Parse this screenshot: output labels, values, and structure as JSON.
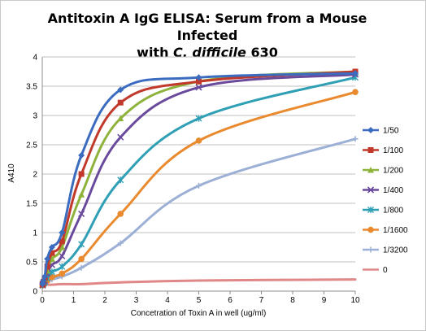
{
  "chart_data": {
    "type": "line",
    "title_line1": "Antitoxin A IgG ELISA: Serum from a Mouse Infected",
    "title_line2_prefix": "with ",
    "title_line2_italic": "C. difficile",
    "title_line2_suffix": " 630",
    "xlabel": "Concetration of Toxin A in well (ug/ml)",
    "ylabel": "A410",
    "xlim": [
      0,
      10
    ],
    "ylim": [
      0,
      4
    ],
    "x_ticks": [
      "0",
      "1",
      "2",
      "3",
      "4",
      "5",
      "6",
      "7",
      "8",
      "9",
      "10"
    ],
    "y_ticks": [
      "0",
      "0.5",
      "1",
      "1.5",
      "2",
      "2.5",
      "3",
      "3.5",
      "4"
    ],
    "grid": "horizontal",
    "legend_position": "right",
    "x": [
      0.01,
      0.02,
      0.04,
      0.08,
      0.16,
      0.31,
      0.63,
      1.25,
      2.5,
      5,
      10
    ],
    "series": [
      {
        "name": "1/50",
        "color": "#3b6cc0",
        "marker": "diamond",
        "values": [
          0.12,
          0.14,
          0.18,
          0.25,
          0.55,
          0.75,
          1.0,
          2.32,
          3.44,
          3.65,
          3.72
        ]
      },
      {
        "name": "1/100",
        "color": "#c0392b",
        "marker": "square",
        "values": [
          0.11,
          0.13,
          0.16,
          0.22,
          0.42,
          0.65,
          0.85,
          2.0,
          3.22,
          3.58,
          3.75
        ]
      },
      {
        "name": "1/200",
        "color": "#8eb33b",
        "marker": "triangle",
        "values": [
          0.11,
          0.12,
          0.15,
          0.2,
          0.35,
          0.55,
          0.75,
          1.65,
          2.95,
          3.58,
          3.75
        ]
      },
      {
        "name": "1/400",
        "color": "#6a4a9c",
        "marker": "x",
        "values": [
          0.1,
          0.12,
          0.14,
          0.18,
          0.3,
          0.45,
          0.6,
          1.32,
          2.63,
          3.48,
          3.7
        ]
      },
      {
        "name": "1/800",
        "color": "#2e9fb4",
        "marker": "star",
        "values": [
          0.1,
          0.11,
          0.13,
          0.16,
          0.22,
          0.33,
          0.42,
          0.8,
          1.9,
          2.95,
          3.65
        ]
      },
      {
        "name": "1/1600",
        "color": "#e98a2f",
        "marker": "circle",
        "values": [
          0.1,
          0.11,
          0.12,
          0.14,
          0.18,
          0.24,
          0.3,
          0.55,
          1.32,
          2.57,
          3.4
        ]
      },
      {
        "name": "1/3200",
        "color": "#9cb0d6",
        "marker": "plus",
        "values": [
          0.1,
          0.1,
          0.11,
          0.12,
          0.15,
          0.2,
          0.25,
          0.4,
          0.82,
          1.8,
          2.6
        ]
      },
      {
        "name": "0",
        "color": "#e08888",
        "marker": "dash",
        "values": [
          0.1,
          0.1,
          0.1,
          0.1,
          0.11,
          0.11,
          0.12,
          0.12,
          0.15,
          0.18,
          0.2
        ]
      }
    ]
  }
}
